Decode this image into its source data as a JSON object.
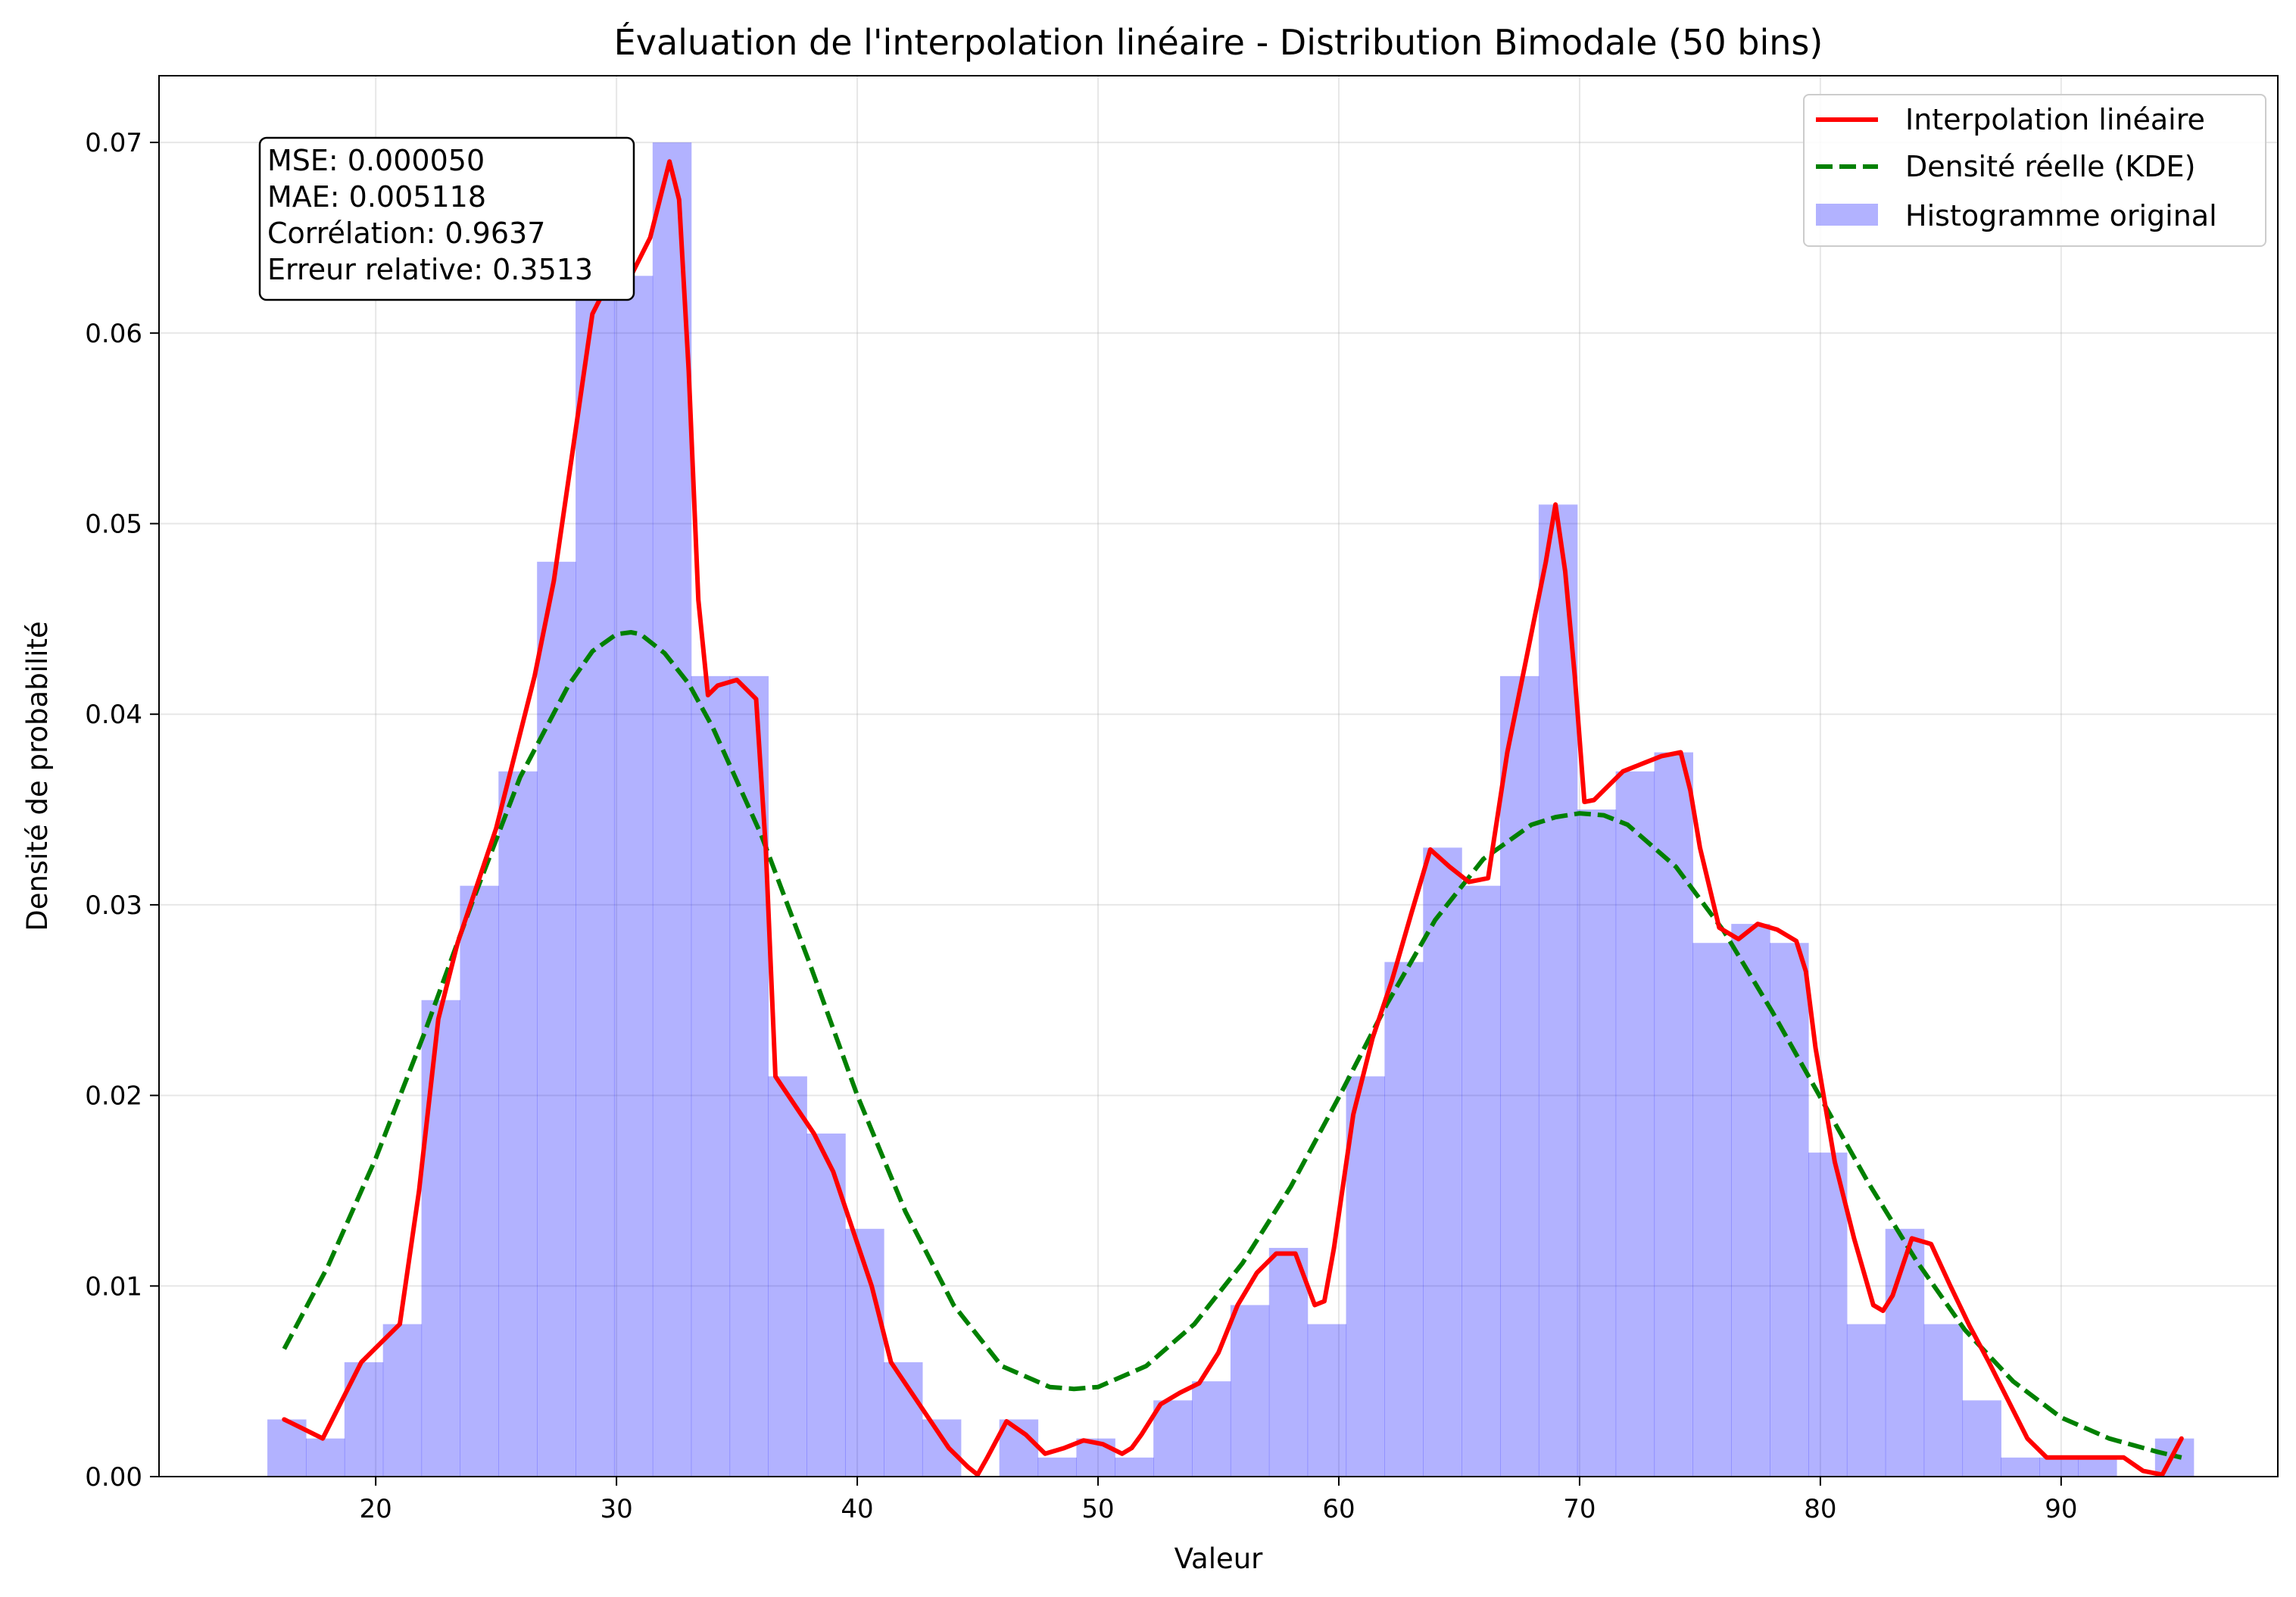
{
  "chart_data": {
    "type": "bar",
    "title": "Évaluation de l'interpolation linéaire - Distribution Bimodale (50 bins)",
    "xlabel": "Valeur",
    "ylabel": "Densité de probabilité",
    "xlim": [
      11,
      99
    ],
    "ylim": [
      0,
      0.0735
    ],
    "grid": true,
    "legend_position": "top-right",
    "x_ticks": [
      20,
      30,
      40,
      50,
      60,
      70,
      80,
      90
    ],
    "y_ticks": [
      0.0,
      0.01,
      0.02,
      0.03,
      0.04,
      0.05,
      0.06,
      0.07
    ],
    "x_tick_labels": [
      "20",
      "30",
      "40",
      "50",
      "60",
      "70",
      "80",
      "90"
    ],
    "y_tick_labels": [
      "0.00",
      "0.01",
      "0.02",
      "0.03",
      "0.04",
      "0.05",
      "0.06",
      "0.07"
    ],
    "stats_box": [
      "MSE: 0.000050",
      "MAE: 0.005118",
      "Corrélation: 0.9637",
      "Erreur relative: 0.3513"
    ],
    "series": [
      {
        "name": "Interpolation linéaire",
        "kind": "line",
        "color": "#ff0000",
        "x": [
          16.2,
          17.0,
          17.8,
          18.6,
          19.4,
          20.2,
          21.0,
          21.8,
          22.6,
          23.4,
          24.2,
          25.0,
          25.8,
          26.6,
          27.4,
          28.2,
          29.0,
          29.8,
          30.6,
          31.4,
          32.2,
          32.6,
          33.0,
          33.4,
          33.8,
          34.2,
          35.0,
          35.8,
          36.2,
          36.6,
          37.4,
          38.2,
          39.0,
          39.8,
          40.6,
          41.4,
          42.2,
          43.0,
          43.8,
          44.6,
          45.0,
          45.4,
          46.2,
          47.0,
          47.8,
          48.6,
          49.4,
          50.2,
          51.0,
          51.4,
          51.8,
          52.6,
          53.4,
          54.2,
          55.0,
          55.8,
          56.6,
          57.4,
          58.2,
          59.0,
          59.4,
          59.8,
          60.6,
          61.4,
          62.2,
          63.0,
          63.8,
          64.6,
          65.4,
          66.2,
          67.0,
          67.8,
          68.6,
          69.0,
          69.4,
          69.8,
          70.2,
          70.6,
          71.0,
          71.8,
          72.6,
          73.4,
          74.2,
          74.6,
          75.0,
          75.8,
          76.6,
          77.4,
          78.2,
          79.0,
          79.4,
          79.8,
          80.6,
          81.4,
          82.2,
          82.6,
          83.0,
          83.8,
          84.6,
          85.4,
          86.2,
          87.0,
          87.8,
          88.6,
          89.4,
          90.2,
          91.0,
          91.8,
          92.6,
          93.4,
          94.2,
          95.0
        ],
        "y": [
          0.003,
          0.0025,
          0.002,
          0.004,
          0.006,
          0.007,
          0.008,
          0.015,
          0.024,
          0.028,
          0.031,
          0.034,
          0.038,
          0.042,
          0.047,
          0.054,
          0.061,
          0.063,
          0.063,
          0.065,
          0.069,
          0.067,
          0.058,
          0.046,
          0.041,
          0.0415,
          0.0418,
          0.0408,
          0.033,
          0.021,
          0.0195,
          0.018,
          0.016,
          0.013,
          0.01,
          0.006,
          0.0045,
          0.003,
          0.0015,
          0.0005,
          0.0001,
          0.001,
          0.0029,
          0.0022,
          0.0012,
          0.0015,
          0.0019,
          0.0017,
          0.0012,
          0.0015,
          0.0022,
          0.0038,
          0.0044,
          0.0049,
          0.0065,
          0.009,
          0.0107,
          0.0117,
          0.0117,
          0.009,
          0.0092,
          0.012,
          0.019,
          0.023,
          0.026,
          0.0295,
          0.0329,
          0.032,
          0.0312,
          0.0314,
          0.038,
          0.043,
          0.048,
          0.051,
          0.0475,
          0.042,
          0.0354,
          0.0355,
          0.036,
          0.037,
          0.0374,
          0.0378,
          0.038,
          0.036,
          0.033,
          0.0288,
          0.0282,
          0.029,
          0.0287,
          0.0281,
          0.0265,
          0.0225,
          0.0165,
          0.0125,
          0.009,
          0.0087,
          0.0095,
          0.0125,
          0.0122,
          0.01,
          0.0079,
          0.006,
          0.004,
          0.002,
          0.001,
          0.001,
          0.001,
          0.001,
          0.001,
          0.0003,
          0.0001,
          0.002
        ]
      },
      {
        "name": "Densité réelle (KDE)",
        "kind": "dashed-line",
        "color": "#008000",
        "x": [
          16.2,
          18.0,
          20.0,
          22.0,
          24.0,
          26.0,
          28.0,
          29.0,
          30.0,
          30.6,
          31.0,
          32.0,
          33.0,
          34.0,
          36.0,
          38.0,
          40.0,
          42.0,
          44.0,
          46.0,
          48.0,
          49.0,
          50.0,
          52.0,
          54.0,
          56.0,
          58.0,
          60.0,
          62.0,
          64.0,
          66.0,
          68.0,
          69.0,
          70.0,
          71.0,
          72.0,
          74.0,
          76.0,
          78.0,
          80.0,
          82.0,
          84.0,
          86.0,
          88.0,
          90.0,
          92.0,
          94.0,
          95.0
        ],
        "y": [
          0.0067,
          0.011,
          0.0167,
          0.0232,
          0.0301,
          0.0367,
          0.0415,
          0.0433,
          0.0442,
          0.0443,
          0.0442,
          0.0432,
          0.0416,
          0.0393,
          0.0337,
          0.027,
          0.02,
          0.0139,
          0.009,
          0.0058,
          0.0047,
          0.0046,
          0.0047,
          0.0058,
          0.008,
          0.0112,
          0.0152,
          0.0199,
          0.0248,
          0.0292,
          0.0324,
          0.0342,
          0.0346,
          0.0348,
          0.0347,
          0.0342,
          0.032,
          0.0286,
          0.0244,
          0.0199,
          0.0154,
          0.0113,
          0.0077,
          0.005,
          0.0031,
          0.002,
          0.0013,
          0.001
        ]
      },
      {
        "name": "Histogramme original",
        "kind": "histogram",
        "color": "#0000ff",
        "bin_start": 15.5,
        "bin_width": 1.6,
        "values": [
          0.003,
          0.002,
          0.006,
          0.008,
          0.025,
          0.031,
          0.037,
          0.048,
          0.062,
          0.063,
          0.07,
          0.042,
          0.042,
          0.021,
          0.018,
          0.013,
          0.006,
          0.003,
          0.0,
          0.003,
          0.001,
          0.002,
          0.001,
          0.004,
          0.005,
          0.009,
          0.012,
          0.008,
          0.021,
          0.027,
          0.033,
          0.031,
          0.042,
          0.051,
          0.035,
          0.037,
          0.038,
          0.028,
          0.029,
          0.028,
          0.017,
          0.008,
          0.013,
          0.008,
          0.004,
          0.001,
          0.001,
          0.001,
          0.0,
          0.002
        ]
      }
    ]
  }
}
